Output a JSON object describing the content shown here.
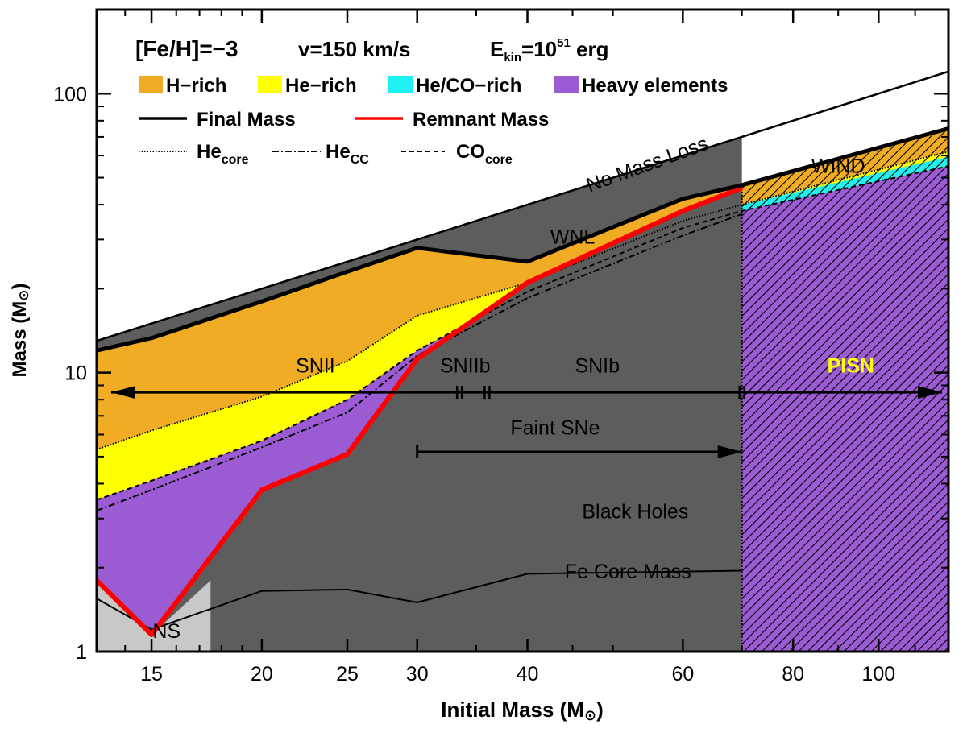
{
  "chart_data": {
    "type": "area",
    "xlabel": "Initial Mass (M",
    "xlabel_end": ")",
    "ylabel": "Mass (M",
    "ylabel_end": ")",
    "sun_symbol": "⊙",
    "xscale": "log",
    "yscale": "log",
    "xlim": [
      13,
      120
    ],
    "ylim": [
      1,
      200
    ],
    "x_ticks": [
      15,
      20,
      25,
      30,
      40,
      60,
      80,
      100
    ],
    "y_ticks": [
      1,
      10,
      100
    ],
    "grid": false,
    "legend_position": "top-left",
    "header": {
      "feh": "[Fe/H]=−3",
      "v": "v=150 km/s",
      "ekin_base": "E",
      "ekin_sub": "kin",
      "ekin_eq": "=10",
      "ekin_sup": "51",
      "ekin_unit": " erg"
    },
    "legend": {
      "areas": [
        {
          "name": "H−rich",
          "color": "#f0ac24"
        },
        {
          "name": "He−rich",
          "color": "#ffff00"
        },
        {
          "name": "He/CO−rich",
          "color": "#1ff0f0"
        },
        {
          "name": "Heavy elements",
          "color": "#9b5bd2"
        }
      ],
      "lines": [
        {
          "name": "Final Mass",
          "color": "#000000"
        },
        {
          "name": "Remnant Mass",
          "color": "#ff0000"
        }
      ],
      "dashed": [
        {
          "base": "He",
          "sub": "core"
        },
        {
          "base": "He",
          "sub": "CC"
        },
        {
          "base": "CO",
          "sub": "core"
        }
      ]
    },
    "series": [
      {
        "name": "No Mass Loss",
        "x": [
          13,
          120
        ],
        "y": [
          13,
          120
        ]
      },
      {
        "name": "Final Mass",
        "x": [
          13,
          15,
          20,
          25,
          30,
          40,
          60,
          70,
          120
        ],
        "y": [
          12,
          13.3,
          18,
          23,
          28,
          25,
          42,
          47,
          75
        ]
      },
      {
        "name": "He_core",
        "x": [
          13,
          15,
          20,
          25,
          30,
          40,
          60,
          70,
          120
        ],
        "y": [
          5.3,
          6.2,
          8.2,
          11,
          16,
          21,
          35,
          40,
          62
        ]
      },
      {
        "name": "He_CC",
        "x": [
          13,
          15,
          20,
          25,
          30,
          40,
          60,
          70
        ],
        "y": [
          3.2,
          3.8,
          5.4,
          7.2,
          11.5,
          18.5,
          31,
          37
        ]
      },
      {
        "name": "CO_core",
        "x": [
          13,
          15,
          20,
          25,
          30,
          40,
          60,
          70,
          120
        ],
        "y": [
          3.5,
          4.1,
          5.7,
          8,
          12,
          19.5,
          33,
          38,
          55
        ]
      },
      {
        "name": "Remnant Mass",
        "x": [
          13,
          15,
          20,
          25,
          30,
          40,
          60,
          70
        ],
        "y": [
          1.8,
          1.15,
          3.8,
          5.1,
          11.2,
          21,
          38,
          46
        ]
      },
      {
        "name": "Fe Core Mass",
        "x": [
          13,
          15,
          20,
          25,
          30,
          40,
          70
        ],
        "y": [
          1.55,
          1.2,
          1.65,
          1.67,
          1.5,
          1.9,
          1.95
        ]
      }
    ],
    "pisn_region": {
      "x_start": 70,
      "x_end": 120,
      "hatch": true
    },
    "ns_region": {
      "x_start": 13,
      "x_end": 17.5
    },
    "annotations": [
      {
        "text": "No Mass Loss",
        "x": 55,
        "y": 53,
        "angle": -20
      },
      {
        "text": "WIND",
        "x": 90,
        "y": 52
      },
      {
        "text": "WNL",
        "x": 45,
        "y": 29
      },
      {
        "text": "SNII",
        "x": 23,
        "y": 10
      },
      {
        "text": "SNIIb",
        "x": 34,
        "y": 10
      },
      {
        "text": "SNIb",
        "x": 48,
        "y": 10
      },
      {
        "text": "PISN",
        "x": 93,
        "y": 10,
        "color": "#ffff00"
      },
      {
        "text": "Faint SNe",
        "x": 43,
        "y": 6
      },
      {
        "text": "Black Holes",
        "x": 53,
        "y": 3
      },
      {
        "text": "Fe Core Mass",
        "x": 52,
        "y": 1.83
      },
      {
        "text": "NS",
        "x": 15.6,
        "y": 1.12
      }
    ],
    "arrows": [
      {
        "name": "sn-type-arrow",
        "x_start": 13.5,
        "x_end": 118,
        "y": 8.5,
        "ticks": [
          33.5,
          36,
          70
        ]
      },
      {
        "name": "faint-sne-arrow",
        "x_start": 30,
        "x_end": 70,
        "y": 5.2
      }
    ]
  }
}
